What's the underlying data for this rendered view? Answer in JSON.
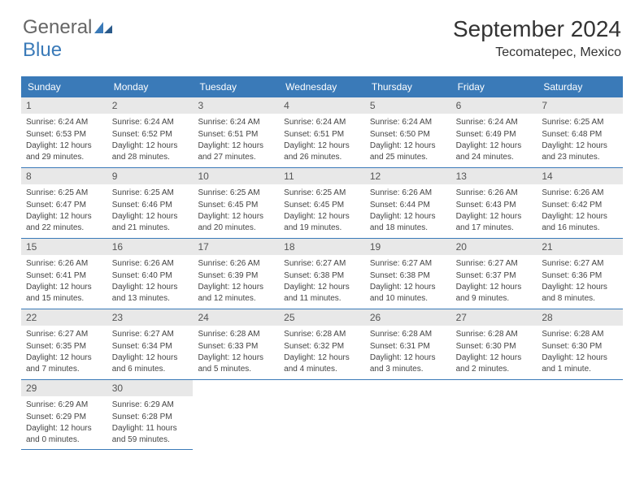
{
  "logo": {
    "text1": "General",
    "text2": "Blue"
  },
  "title": "September 2024",
  "location": "Tecomatepec, Mexico",
  "colors": {
    "header_bg": "#3a7ab8",
    "header_text": "#ffffff",
    "daynum_bg": "#e8e8e8",
    "border": "#3a7ab8"
  },
  "dayNames": [
    "Sunday",
    "Monday",
    "Tuesday",
    "Wednesday",
    "Thursday",
    "Friday",
    "Saturday"
  ],
  "weeks": [
    [
      {
        "n": "1",
        "sr": "6:24 AM",
        "ss": "6:53 PM",
        "dl": "12 hours and 29 minutes."
      },
      {
        "n": "2",
        "sr": "6:24 AM",
        "ss": "6:52 PM",
        "dl": "12 hours and 28 minutes."
      },
      {
        "n": "3",
        "sr": "6:24 AM",
        "ss": "6:51 PM",
        "dl": "12 hours and 27 minutes."
      },
      {
        "n": "4",
        "sr": "6:24 AM",
        "ss": "6:51 PM",
        "dl": "12 hours and 26 minutes."
      },
      {
        "n": "5",
        "sr": "6:24 AM",
        "ss": "6:50 PM",
        "dl": "12 hours and 25 minutes."
      },
      {
        "n": "6",
        "sr": "6:24 AM",
        "ss": "6:49 PM",
        "dl": "12 hours and 24 minutes."
      },
      {
        "n": "7",
        "sr": "6:25 AM",
        "ss": "6:48 PM",
        "dl": "12 hours and 23 minutes."
      }
    ],
    [
      {
        "n": "8",
        "sr": "6:25 AM",
        "ss": "6:47 PM",
        "dl": "12 hours and 22 minutes."
      },
      {
        "n": "9",
        "sr": "6:25 AM",
        "ss": "6:46 PM",
        "dl": "12 hours and 21 minutes."
      },
      {
        "n": "10",
        "sr": "6:25 AM",
        "ss": "6:45 PM",
        "dl": "12 hours and 20 minutes."
      },
      {
        "n": "11",
        "sr": "6:25 AM",
        "ss": "6:45 PM",
        "dl": "12 hours and 19 minutes."
      },
      {
        "n": "12",
        "sr": "6:26 AM",
        "ss": "6:44 PM",
        "dl": "12 hours and 18 minutes."
      },
      {
        "n": "13",
        "sr": "6:26 AM",
        "ss": "6:43 PM",
        "dl": "12 hours and 17 minutes."
      },
      {
        "n": "14",
        "sr": "6:26 AM",
        "ss": "6:42 PM",
        "dl": "12 hours and 16 minutes."
      }
    ],
    [
      {
        "n": "15",
        "sr": "6:26 AM",
        "ss": "6:41 PM",
        "dl": "12 hours and 15 minutes."
      },
      {
        "n": "16",
        "sr": "6:26 AM",
        "ss": "6:40 PM",
        "dl": "12 hours and 13 minutes."
      },
      {
        "n": "17",
        "sr": "6:26 AM",
        "ss": "6:39 PM",
        "dl": "12 hours and 12 minutes."
      },
      {
        "n": "18",
        "sr": "6:27 AM",
        "ss": "6:38 PM",
        "dl": "12 hours and 11 minutes."
      },
      {
        "n": "19",
        "sr": "6:27 AM",
        "ss": "6:38 PM",
        "dl": "12 hours and 10 minutes."
      },
      {
        "n": "20",
        "sr": "6:27 AM",
        "ss": "6:37 PM",
        "dl": "12 hours and 9 minutes."
      },
      {
        "n": "21",
        "sr": "6:27 AM",
        "ss": "6:36 PM",
        "dl": "12 hours and 8 minutes."
      }
    ],
    [
      {
        "n": "22",
        "sr": "6:27 AM",
        "ss": "6:35 PM",
        "dl": "12 hours and 7 minutes."
      },
      {
        "n": "23",
        "sr": "6:27 AM",
        "ss": "6:34 PM",
        "dl": "12 hours and 6 minutes."
      },
      {
        "n": "24",
        "sr": "6:28 AM",
        "ss": "6:33 PM",
        "dl": "12 hours and 5 minutes."
      },
      {
        "n": "25",
        "sr": "6:28 AM",
        "ss": "6:32 PM",
        "dl": "12 hours and 4 minutes."
      },
      {
        "n": "26",
        "sr": "6:28 AM",
        "ss": "6:31 PM",
        "dl": "12 hours and 3 minutes."
      },
      {
        "n": "27",
        "sr": "6:28 AM",
        "ss": "6:30 PM",
        "dl": "12 hours and 2 minutes."
      },
      {
        "n": "28",
        "sr": "6:28 AM",
        "ss": "6:30 PM",
        "dl": "12 hours and 1 minute."
      }
    ],
    [
      {
        "n": "29",
        "sr": "6:29 AM",
        "ss": "6:29 PM",
        "dl": "12 hours and 0 minutes."
      },
      {
        "n": "30",
        "sr": "6:29 AM",
        "ss": "6:28 PM",
        "dl": "11 hours and 59 minutes."
      },
      null,
      null,
      null,
      null,
      null
    ]
  ],
  "labels": {
    "sunrise": "Sunrise:",
    "sunset": "Sunset:",
    "daylight": "Daylight:"
  }
}
